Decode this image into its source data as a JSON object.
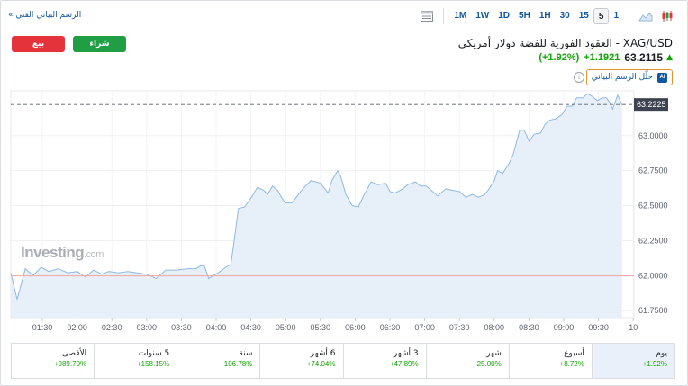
{
  "toolbar": {
    "tech_chart_link": "الرسم البياني الفني »",
    "timeframes": [
      "1M",
      "1W",
      "1D",
      "5H",
      "1H",
      "30",
      "15",
      "5",
      "1"
    ],
    "selected_timeframe": "5",
    "icons": [
      "candlestick-icon",
      "mountain-chart-icon",
      "table-view-icon"
    ]
  },
  "instrument": {
    "title": "XAG/USD - العقود الفورية للفضة دولار أمريكي",
    "last_price": "63.2115",
    "change": "+1.1921",
    "change_pct": "(+1.92%)"
  },
  "actions": {
    "sell_label": "بيع",
    "buy_label": "شراء",
    "ai_badge": "AI",
    "ai_label": "حلّل الرسم البياني"
  },
  "watermark": {
    "brand": "Investing",
    "suffix": ".com"
  },
  "chart_data": {
    "type": "area",
    "x_labels": [
      "01:30",
      "02:00",
      "02:30",
      "03:00",
      "03:30",
      "04:00",
      "04:30",
      "05:00",
      "05:30",
      "06:00",
      "06:30",
      "07:00",
      "07:30",
      "08:00",
      "08:30",
      "09:00",
      "09:30",
      "10"
    ],
    "y_ticks": [
      "61.7500",
      "62.0000",
      "62.2500",
      "62.5000",
      "62.7500",
      "63.0000"
    ],
    "ylim": [
      61.7,
      63.32
    ],
    "reference_line": 61.998,
    "last_value_label": "63.2225",
    "last_value": 63.2225,
    "series": [
      {
        "points": [
          [
            0.0,
            62.02
          ],
          [
            0.1,
            61.83
          ],
          [
            0.23,
            62.05
          ],
          [
            0.35,
            62.0
          ],
          [
            0.48,
            62.06
          ],
          [
            0.6,
            62.03
          ],
          [
            0.75,
            62.05
          ],
          [
            0.9,
            62.02
          ],
          [
            1.05,
            62.03
          ],
          [
            1.18,
            61.99
          ],
          [
            1.31,
            62.04
          ],
          [
            1.44,
            62.01
          ],
          [
            1.55,
            62.03
          ],
          [
            1.7,
            62.02
          ],
          [
            1.85,
            62.03
          ],
          [
            2.0,
            62.02
          ],
          [
            2.15,
            62.01
          ],
          [
            2.3,
            61.98
          ],
          [
            2.45,
            62.04
          ],
          [
            2.62,
            62.04
          ],
          [
            2.8,
            62.05
          ],
          [
            2.93,
            62.05
          ],
          [
            3.0,
            62.07
          ],
          [
            3.06,
            62.07
          ],
          [
            3.13,
            61.98
          ],
          [
            3.28,
            62.02
          ],
          [
            3.4,
            62.06
          ],
          [
            3.48,
            62.08
          ],
          [
            3.54,
            62.27
          ],
          [
            3.6,
            62.48
          ],
          [
            3.7,
            62.49
          ],
          [
            3.82,
            62.57
          ],
          [
            3.9,
            62.63
          ],
          [
            4.0,
            62.61
          ],
          [
            4.06,
            62.58
          ],
          [
            4.14,
            62.64
          ],
          [
            4.22,
            62.61
          ],
          [
            4.28,
            62.56
          ],
          [
            4.34,
            62.52
          ],
          [
            4.45,
            62.52
          ],
          [
            4.6,
            62.61
          ],
          [
            4.75,
            62.68
          ],
          [
            4.9,
            62.66
          ],
          [
            5.02,
            62.59
          ],
          [
            5.08,
            62.68
          ],
          [
            5.17,
            62.75
          ],
          [
            5.22,
            62.71
          ],
          [
            5.3,
            62.58
          ],
          [
            5.4,
            62.5
          ],
          [
            5.5,
            62.49
          ],
          [
            5.58,
            62.57
          ],
          [
            5.7,
            62.67
          ],
          [
            5.8,
            62.65
          ],
          [
            5.93,
            62.66
          ],
          [
            6.0,
            62.6
          ],
          [
            6.08,
            62.59
          ],
          [
            6.2,
            62.62
          ],
          [
            6.28,
            62.65
          ],
          [
            6.4,
            62.67
          ],
          [
            6.48,
            62.64
          ],
          [
            6.57,
            62.64
          ],
          [
            6.65,
            62.61
          ],
          [
            6.75,
            62.57
          ],
          [
            6.88,
            62.62
          ],
          [
            6.98,
            62.61
          ],
          [
            7.1,
            62.6
          ],
          [
            7.2,
            62.56
          ],
          [
            7.3,
            62.58
          ],
          [
            7.4,
            62.56
          ],
          [
            7.5,
            62.58
          ],
          [
            7.55,
            62.61
          ],
          [
            7.65,
            62.68
          ],
          [
            7.7,
            62.75
          ],
          [
            7.78,
            62.73
          ],
          [
            7.88,
            62.8
          ],
          [
            7.95,
            62.87
          ],
          [
            8.05,
            63.04
          ],
          [
            8.12,
            63.04
          ],
          [
            8.2,
            62.96
          ],
          [
            8.28,
            63.01
          ],
          [
            8.38,
            63.02
          ],
          [
            8.45,
            63.08
          ],
          [
            8.52,
            63.11
          ],
          [
            8.62,
            63.12
          ],
          [
            8.72,
            63.15
          ],
          [
            8.8,
            63.21
          ],
          [
            8.88,
            63.21
          ],
          [
            8.95,
            63.27
          ],
          [
            9.05,
            63.27
          ],
          [
            9.12,
            63.3
          ],
          [
            9.2,
            63.28
          ],
          [
            9.28,
            63.25
          ],
          [
            9.35,
            63.27
          ],
          [
            9.42,
            63.27
          ],
          [
            9.47,
            63.24
          ],
          [
            9.52,
            63.19
          ],
          [
            9.6,
            63.29
          ],
          [
            9.67,
            63.22
          ]
        ]
      }
    ],
    "grid": true
  },
  "performance": [
    {
      "label": "يوم",
      "value": "+1.92%"
    },
    {
      "label": "أسبوع",
      "value": "+8.72%"
    },
    {
      "label": "شهر",
      "value": "+25.00%"
    },
    {
      "label": "3 أشهر",
      "value": "+47.89%"
    },
    {
      "label": "6 أشهر",
      "value": "+74.04%"
    },
    {
      "label": "سنة",
      "value": "+106.78%"
    },
    {
      "label": "5 سنوات",
      "value": "+158.15%"
    },
    {
      "label": "الأقصى",
      "value": "+989.70%"
    }
  ],
  "colors": {
    "up": "#0ea600",
    "link": "#1256a0",
    "line": "#8db9e3",
    "fill": "#e7f0f9",
    "reference": "#f5a3a3"
  }
}
